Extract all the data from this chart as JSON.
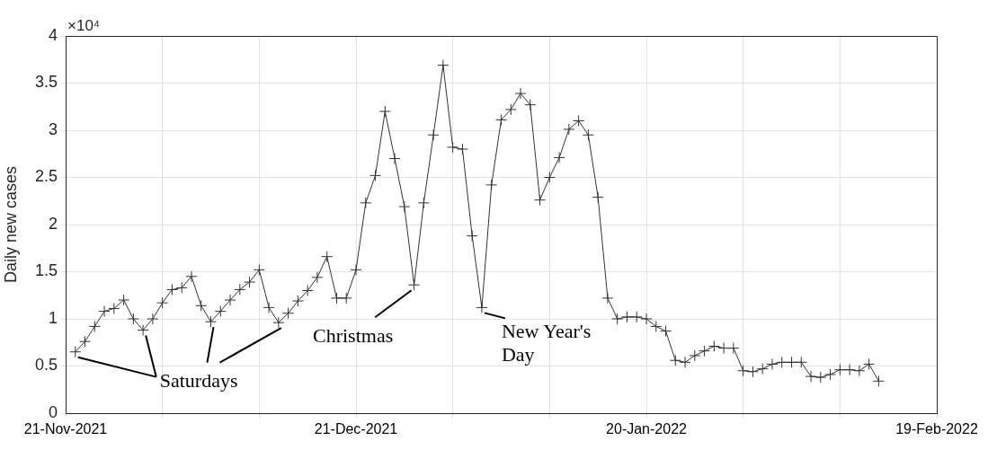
{
  "chart_data": {
    "type": "line",
    "ylabel": "Daily new cases",
    "color": "#333333",
    "marker": "cross",
    "line_style": "solid",
    "grid": true,
    "legend": false,
    "x": [
      "2021-11-22",
      "2021-11-23",
      "2021-11-24",
      "2021-11-25",
      "2021-11-26",
      "2021-11-27",
      "2021-11-28",
      "2021-11-29",
      "2021-11-30",
      "2021-12-01",
      "2021-12-02",
      "2021-12-03",
      "2021-12-04",
      "2021-12-05",
      "2021-12-06",
      "2021-12-07",
      "2021-12-08",
      "2021-12-09",
      "2021-12-10",
      "2021-12-11",
      "2021-12-12",
      "2021-12-13",
      "2021-12-14",
      "2021-12-15",
      "2021-12-16",
      "2021-12-17",
      "2021-12-18",
      "2021-12-19",
      "2021-12-20",
      "2021-12-21",
      "2021-12-22",
      "2021-12-23",
      "2021-12-24",
      "2021-12-25",
      "2021-12-26",
      "2021-12-27",
      "2021-12-28",
      "2021-12-29",
      "2021-12-30",
      "2021-12-31",
      "2022-01-01",
      "2022-01-02",
      "2022-01-03",
      "2022-01-04",
      "2022-01-05",
      "2022-01-06",
      "2022-01-07",
      "2022-01-08",
      "2022-01-09",
      "2022-01-10",
      "2022-01-11",
      "2022-01-12",
      "2022-01-13",
      "2022-01-14",
      "2022-01-15",
      "2022-01-16",
      "2022-01-17",
      "2022-01-18",
      "2022-01-19",
      "2022-01-20",
      "2022-01-21",
      "2022-01-22",
      "2022-01-23",
      "2022-01-24",
      "2022-01-25",
      "2022-01-26",
      "2022-01-27",
      "2022-01-28",
      "2022-01-29",
      "2022-01-30",
      "2022-01-31",
      "2022-02-01",
      "2022-02-02",
      "2022-02-03",
      "2022-02-04",
      "2022-02-05",
      "2022-02-06",
      "2022-02-07",
      "2022-02-08",
      "2022-02-09",
      "2022-02-10",
      "2022-02-11",
      "2022-02-12",
      "2022-02-13"
    ],
    "values": [
      0.65,
      0.76,
      0.92,
      1.08,
      1.11,
      1.2,
      1.0,
      0.88,
      1.0,
      1.17,
      1.31,
      1.33,
      1.45,
      1.14,
      0.97,
      1.08,
      1.2,
      1.31,
      1.39,
      1.52,
      1.12,
      0.96,
      1.06,
      1.19,
      1.3,
      1.44,
      1.66,
      1.22,
      1.22,
      1.52,
      2.23,
      2.52,
      3.2,
      2.7,
      2.19,
      1.36,
      2.23,
      2.95,
      3.69,
      2.82,
      2.8,
      1.88,
      1.12,
      2.42,
      3.11,
      3.22,
      3.39,
      3.27,
      2.26,
      2.5,
      2.71,
      3.01,
      3.1,
      2.95,
      2.29,
      1.22,
      1.0,
      1.02,
      1.02,
      1.0,
      0.92,
      0.87,
      0.56,
      0.54,
      0.61,
      0.66,
      0.71,
      0.69,
      0.69,
      0.45,
      0.44,
      0.47,
      0.52,
      0.54,
      0.54,
      0.54,
      0.39,
      0.38,
      0.41,
      0.46,
      0.46,
      0.45,
      0.52,
      0.34
    ],
    "xlim": [
      "2021-11-21",
      "2022-02-19"
    ],
    "xticks": [
      {
        "value": "2021-11-21",
        "label": "21-Nov-2021"
      },
      {
        "value": "2021-12-01",
        "label": null
      },
      {
        "value": "2021-12-11",
        "label": null
      },
      {
        "value": "2021-12-21",
        "label": "21-Dec-2021"
      },
      {
        "value": "2021-12-31",
        "label": null
      },
      {
        "value": "2022-01-10",
        "label": null
      },
      {
        "value": "2022-01-20",
        "label": "20-Jan-2022"
      },
      {
        "value": "2022-01-30",
        "label": null
      },
      {
        "value": "2022-02-09",
        "label": null
      },
      {
        "value": "2022-02-19",
        "label": "19-Feb-2022"
      }
    ],
    "ylim": [
      0,
      4
    ],
    "yticks": [
      0,
      0.5,
      1,
      1.5,
      2,
      2.5,
      3,
      3.5,
      4
    ],
    "annotations": [
      "×10⁴",
      {
        "text": "Saturdays",
        "x": "2021-11-29",
        "y": 0.88
      },
      {
        "text": "Christmas",
        "x": "2021-12-27",
        "y": 1.36
      },
      {
        "text": "New Year's Day",
        "x": "2022-01-03",
        "y": 1.12
      }
    ]
  }
}
